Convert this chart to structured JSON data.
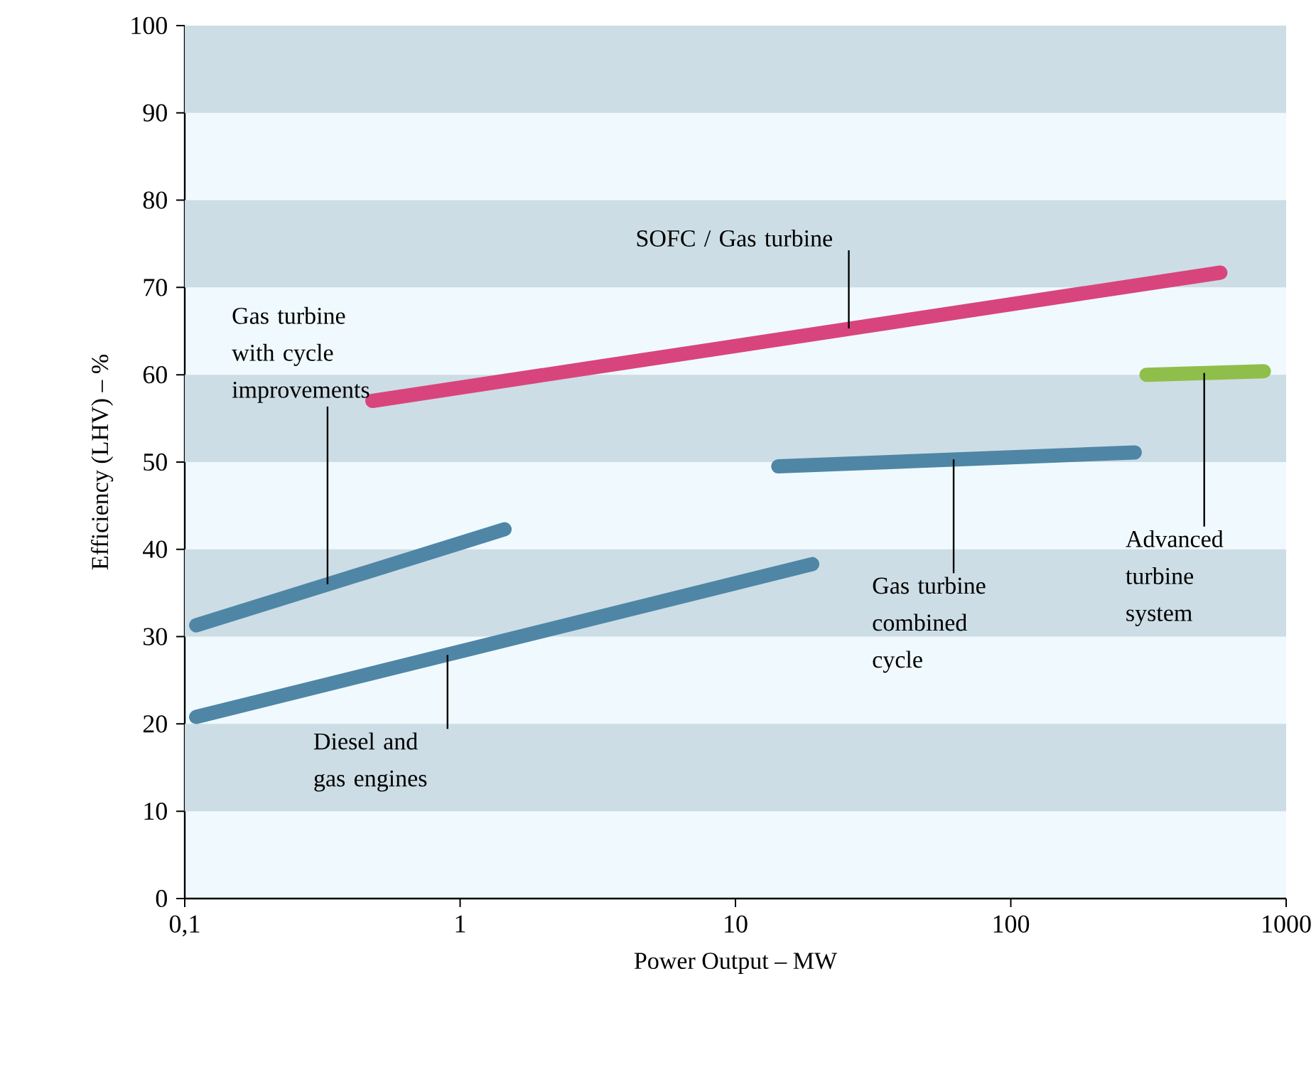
{
  "chart_data": {
    "type": "line",
    "xlabel": "Power Output – MW",
    "ylabel": "Efficiency (LHV) – %",
    "log": "x",
    "xlim": [
      0.1,
      1000
    ],
    "ylim": [
      0,
      100
    ],
    "xticks": [
      {
        "value": 0.1,
        "label": "0,1"
      },
      1,
      10,
      100,
      1000
    ],
    "yticks": [
      0,
      10,
      20,
      30,
      40,
      50,
      60,
      70,
      80,
      90,
      100
    ],
    "bands": [
      {
        "axis": "y",
        "from": 10,
        "to": 20,
        "color": "#cddde5"
      },
      {
        "axis": "y",
        "from": 30,
        "to": 40,
        "color": "#cddde5"
      },
      {
        "axis": "y",
        "from": 50,
        "to": 60,
        "color": "#cddde5"
      },
      {
        "axis": "y",
        "from": 70,
        "to": 80,
        "color": "#cddde5"
      },
      {
        "axis": "y",
        "from": 90,
        "to": 100,
        "color": "#cddde5"
      }
    ],
    "series": [
      {
        "color": "#4f86a6",
        "x": [
          0.11,
          1.45
        ],
        "values": [
          31.3,
          42.3
        ]
      },
      {
        "color": "#4f86a6",
        "x": [
          0.11,
          19
        ],
        "values": [
          20.8,
          38.3
        ]
      },
      {
        "color": "#d8457c",
        "x": [
          0.48,
          577
        ],
        "values": [
          57,
          71.7
        ]
      },
      {
        "color": "#4f86a6",
        "x": [
          14.3,
          282
        ],
        "values": [
          49.5,
          51.1
        ]
      },
      {
        "color": "#8fbf4a",
        "x": [
          311,
          830
        ],
        "values": [
          60,
          60.4
        ]
      }
    ],
    "annotations": [
      {
        "text": "Gas turbine with cycle improvements",
        "x": 0.33,
        "y": 36
      },
      {
        "text": "SOFC / Gas turbine",
        "x": 25.8,
        "y": 65.3
      },
      {
        "text": "Diesel and gas engines",
        "x": 0.9,
        "y": 27.9
      },
      {
        "text": "Gas turbine combined cycle",
        "x": 62,
        "y": 50.3
      },
      {
        "text": "Advanced turbine system",
        "x": 504,
        "y": 60.2
      }
    ],
    "line_style": "solid",
    "marker": "none"
  }
}
